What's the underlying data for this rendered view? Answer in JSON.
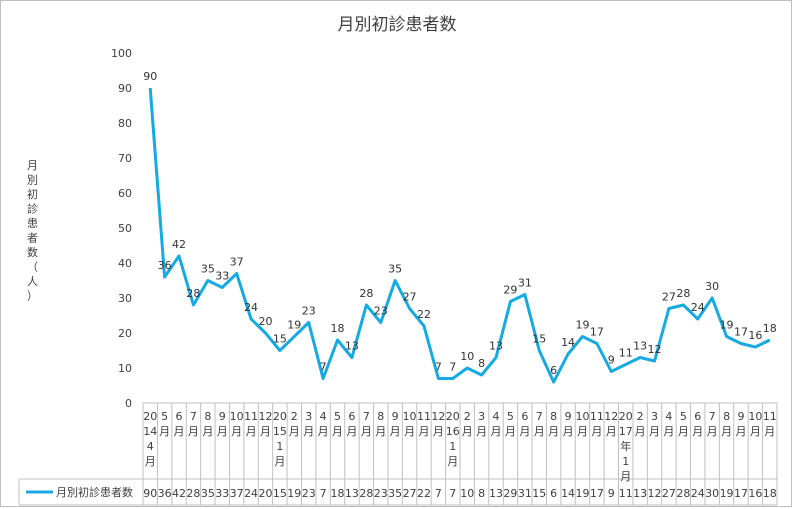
{
  "chart_data": {
    "type": "line",
    "title": "月別初診患者数",
    "ylabel": "月別初診患者数（人）",
    "xlabel": "",
    "ylim": [
      0,
      100
    ],
    "yticks": [
      0,
      10,
      20,
      30,
      40,
      50,
      60,
      70,
      80,
      90,
      100
    ],
    "grid": false,
    "legend": "bottom-left (data table)",
    "line_color": "#17A9E1",
    "categories": [
      "2014年4月",
      "5月",
      "6月",
      "7月",
      "8月",
      "9月",
      "10月",
      "11月",
      "12月",
      "2015年1月",
      "2月",
      "3月",
      "4月",
      "5月",
      "6月",
      "7月",
      "8月",
      "9月",
      "10月",
      "11月",
      "12月",
      "2016年1月",
      "2月",
      "3月",
      "4月",
      "5月",
      "6月",
      "7月",
      "8月",
      "9月",
      "10月",
      "11月",
      "12月",
      "2017年1月",
      "2月",
      "3月",
      "4月",
      "5月",
      "6月",
      "7月",
      "8月",
      "9月",
      "10月",
      "11月"
    ],
    "category_lines": [
      [
        "20",
        "14",
        "4",
        "月"
      ],
      [
        "5",
        "月"
      ],
      [
        "6",
        "月"
      ],
      [
        "7",
        "月"
      ],
      [
        "8",
        "月"
      ],
      [
        "9",
        "月"
      ],
      [
        "10",
        "月"
      ],
      [
        "11",
        "月"
      ],
      [
        "12",
        "月"
      ],
      [
        "20",
        "15",
        "1",
        "月"
      ],
      [
        "2",
        "月"
      ],
      [
        "3",
        "月"
      ],
      [
        "4",
        "月"
      ],
      [
        "5",
        "月"
      ],
      [
        "6",
        "月"
      ],
      [
        "7",
        "月"
      ],
      [
        "8",
        "月"
      ],
      [
        "9",
        "月"
      ],
      [
        "10",
        "月"
      ],
      [
        "11",
        "月"
      ],
      [
        "12",
        "月"
      ],
      [
        "20",
        "16",
        "1",
        "月"
      ],
      [
        "2",
        "月"
      ],
      [
        "3",
        "月"
      ],
      [
        "4",
        "月"
      ],
      [
        "5",
        "月"
      ],
      [
        "6",
        "月"
      ],
      [
        "7",
        "月"
      ],
      [
        "8",
        "月"
      ],
      [
        "9",
        "月"
      ],
      [
        "10",
        "月"
      ],
      [
        "11",
        "月"
      ],
      [
        "12",
        "月"
      ],
      [
        "20",
        "17",
        "年",
        "1",
        "月"
      ],
      [
        "2",
        "月"
      ],
      [
        "3",
        "月"
      ],
      [
        "4",
        "月"
      ],
      [
        "5",
        "月"
      ],
      [
        "6",
        "月"
      ],
      [
        "7",
        "月"
      ],
      [
        "8",
        "月"
      ],
      [
        "9",
        "月"
      ],
      [
        "10",
        "月"
      ],
      [
        "11",
        "月"
      ]
    ],
    "series": [
      {
        "name": "月別初診患者数",
        "values": [
          90,
          36,
          42,
          28,
          35,
          33,
          37,
          24,
          20,
          15,
          19,
          23,
          7,
          18,
          13,
          28,
          23,
          35,
          27,
          22,
          7,
          7,
          10,
          8,
          13,
          29,
          31,
          15,
          6,
          14,
          19,
          17,
          9,
          11,
          13,
          12,
          27,
          28,
          24,
          30,
          19,
          17,
          16,
          18
        ]
      }
    ]
  }
}
